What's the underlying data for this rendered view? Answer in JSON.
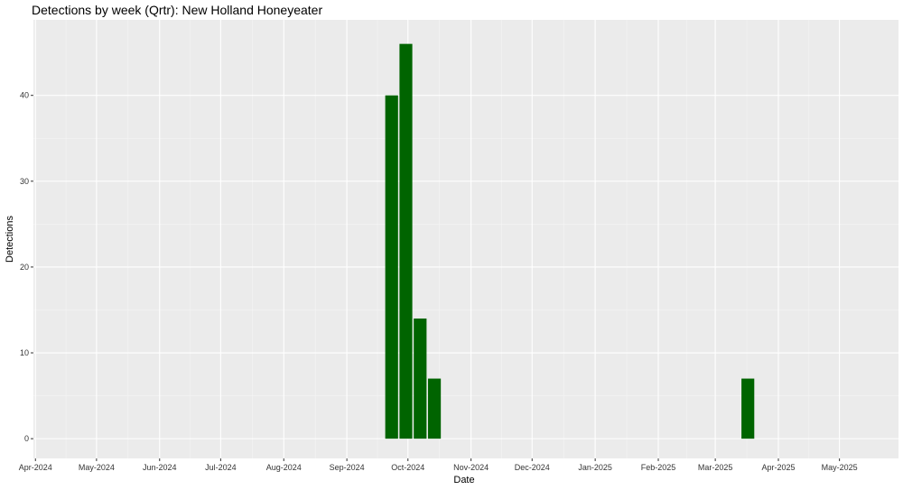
{
  "chart_data": {
    "type": "bar",
    "title": "Detections by week (Qrtr): New Holland Honeyeater",
    "x_label": "Date",
    "y_label": "Detections",
    "x": [
      "2024-09-23",
      "2024-09-30",
      "2024-10-07",
      "2024-10-14",
      "2025-03-17"
    ],
    "values": [
      40,
      46,
      14,
      7,
      7
    ],
    "color": "#006400",
    "xlim": [
      "2024-03-31",
      "2025-05-30"
    ],
    "xticks": [
      {
        "value": "2024-04-01",
        "label": "Apr-2024"
      },
      {
        "value": "2024-05-01",
        "label": "May-2024"
      },
      {
        "value": "2024-06-01",
        "label": "Jun-2024"
      },
      {
        "value": "2024-07-01",
        "label": "Jul-2024"
      },
      {
        "value": "2024-08-01",
        "label": "Aug-2024"
      },
      {
        "value": "2024-09-01",
        "label": "Sep-2024"
      },
      {
        "value": "2024-10-01",
        "label": "Oct-2024"
      },
      {
        "value": "2024-11-01",
        "label": "Nov-2024"
      },
      {
        "value": "2024-12-01",
        "label": "Dec-2024"
      },
      {
        "value": "2025-01-01",
        "label": "Jan-2025"
      },
      {
        "value": "2025-02-01",
        "label": "Feb-2025"
      },
      {
        "value": "2025-03-01",
        "label": "Mar-2025"
      },
      {
        "value": "2025-04-01",
        "label": "Apr-2025"
      },
      {
        "value": "2025-05-01",
        "label": "May-2025"
      }
    ],
    "ylim": [
      -2.3,
      48.8
    ],
    "yticks": [
      0,
      10,
      20,
      30,
      40
    ],
    "grid": true
  }
}
